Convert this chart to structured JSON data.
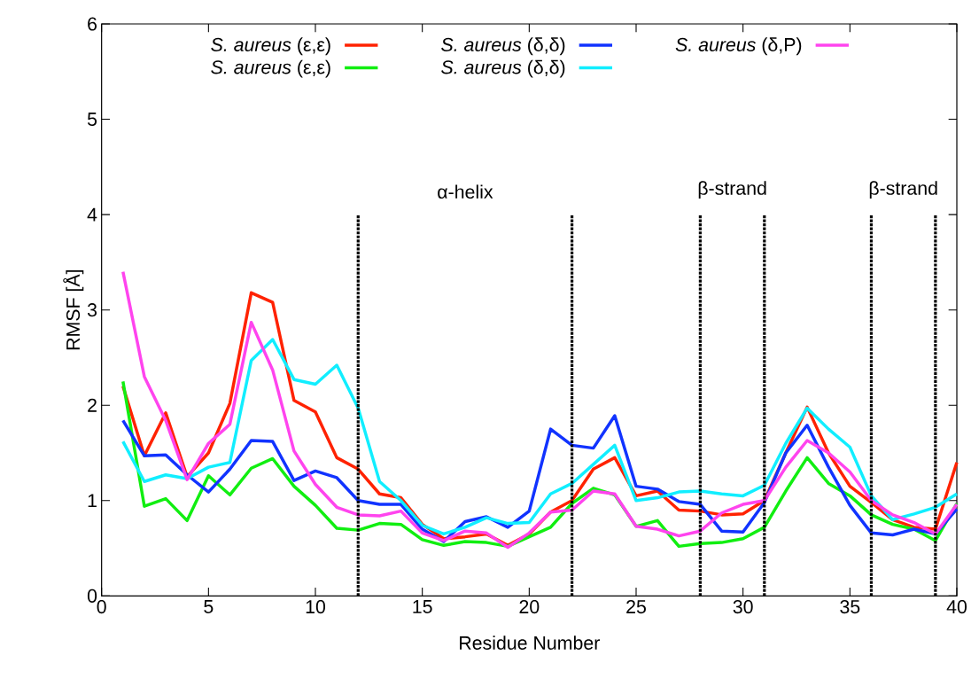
{
  "chart_data": {
    "type": "line",
    "xlabel": "Residue Number",
    "ylabel": "RMSF [Å]",
    "x": [
      1,
      2,
      3,
      4,
      5,
      6,
      7,
      8,
      9,
      10,
      11,
      12,
      13,
      14,
      15,
      16,
      17,
      18,
      19,
      20,
      21,
      22,
      23,
      24,
      25,
      26,
      27,
      28,
      29,
      30,
      31,
      32,
      33,
      34,
      35,
      36,
      37,
      38,
      39,
      40
    ],
    "xlim": [
      0,
      40
    ],
    "xticks": [
      0,
      5,
      10,
      15,
      20,
      25,
      30,
      35,
      40
    ],
    "ylim": [
      0,
      6
    ],
    "yticks": [
      0,
      1,
      2,
      3,
      4,
      5,
      6
    ],
    "grid": false,
    "legend": "top",
    "marker": "none",
    "line_style": "solid",
    "series": [
      {
        "name": "*S. aureus* (ε,ε)",
        "color": "#ff2200",
        "values": [
          2.2,
          1.47,
          1.92,
          1.25,
          1.5,
          2.02,
          3.18,
          3.08,
          2.05,
          1.93,
          1.45,
          1.33,
          1.07,
          1.03,
          0.75,
          0.6,
          0.62,
          0.65,
          0.53,
          0.65,
          0.88,
          1.0,
          1.33,
          1.45,
          1.05,
          1.1,
          0.9,
          0.89,
          0.85,
          0.86,
          1.0,
          1.5,
          1.98,
          1.5,
          1.15,
          0.98,
          0.8,
          0.72,
          0.7,
          1.4
        ]
      },
      {
        "name": "*S. aureus* (ε,ε)",
        "color": "#11ee11",
        "values": [
          2.25,
          0.94,
          1.02,
          0.79,
          1.26,
          1.06,
          1.34,
          1.44,
          1.15,
          0.95,
          0.71,
          0.69,
          0.76,
          0.75,
          0.59,
          0.53,
          0.57,
          0.56,
          0.52,
          0.62,
          0.72,
          0.97,
          1.13,
          1.06,
          0.73,
          0.79,
          0.52,
          0.55,
          0.56,
          0.6,
          0.72,
          1.1,
          1.45,
          1.18,
          1.05,
          0.85,
          0.75,
          0.7,
          0.58,
          0.97
        ]
      },
      {
        "name": "*S. aureus* (δ,δ)",
        "color": "#1133ff",
        "values": [
          1.84,
          1.47,
          1.48,
          1.27,
          1.09,
          1.33,
          1.63,
          1.62,
          1.21,
          1.31,
          1.24,
          1.0,
          0.96,
          0.96,
          0.7,
          0.57,
          0.78,
          0.83,
          0.72,
          0.89,
          1.75,
          1.58,
          1.55,
          1.89,
          1.15,
          1.12,
          0.99,
          0.96,
          0.68,
          0.67,
          0.98,
          1.5,
          1.79,
          1.35,
          0.95,
          0.66,
          0.64,
          0.7,
          0.65,
          0.91
        ]
      },
      {
        "name": "*S. aureus* (δ,δ)",
        "color": "#11eeff",
        "values": [
          1.62,
          1.2,
          1.27,
          1.23,
          1.35,
          1.4,
          2.47,
          2.69,
          2.27,
          2.22,
          2.42,
          1.97,
          1.2,
          1.0,
          0.74,
          0.65,
          0.72,
          0.82,
          0.76,
          0.77,
          1.07,
          1.18,
          1.38,
          1.58,
          1.0,
          1.03,
          1.09,
          1.1,
          1.07,
          1.05,
          1.16,
          1.6,
          1.97,
          1.75,
          1.56,
          1.05,
          0.8,
          0.86,
          0.93,
          1.07
        ]
      },
      {
        "name": "*S. aureus* (δ,P)",
        "color": "#ff44ee",
        "values": [
          3.4,
          2.3,
          1.84,
          1.22,
          1.6,
          1.8,
          2.87,
          2.37,
          1.52,
          1.17,
          0.93,
          0.85,
          0.84,
          0.89,
          0.66,
          0.58,
          0.68,
          0.66,
          0.51,
          0.66,
          0.88,
          0.9,
          1.1,
          1.07,
          0.73,
          0.7,
          0.63,
          0.68,
          0.87,
          0.96,
          1.0,
          1.35,
          1.63,
          1.5,
          1.3,
          1.0,
          0.85,
          0.77,
          0.65,
          0.96
        ]
      }
    ],
    "ref_lines": [
      {
        "axis": "x",
        "value": 12,
        "line_style": "dotted",
        "color": "#000000"
      },
      {
        "axis": "x",
        "value": 22,
        "line_style": "dotted",
        "color": "#000000"
      },
      {
        "axis": "x",
        "value": 28,
        "line_style": "dotted",
        "color": "#000000"
      },
      {
        "axis": "x",
        "value": 31,
        "line_style": "dotted",
        "color": "#000000"
      },
      {
        "axis": "x",
        "value": 36,
        "line_style": "dotted",
        "color": "#000000"
      },
      {
        "axis": "x",
        "value": 39,
        "line_style": "dotted",
        "color": "#000000"
      }
    ],
    "annotations": [
      "α-helix",
      "β-strand",
      "β-strand"
    ]
  }
}
